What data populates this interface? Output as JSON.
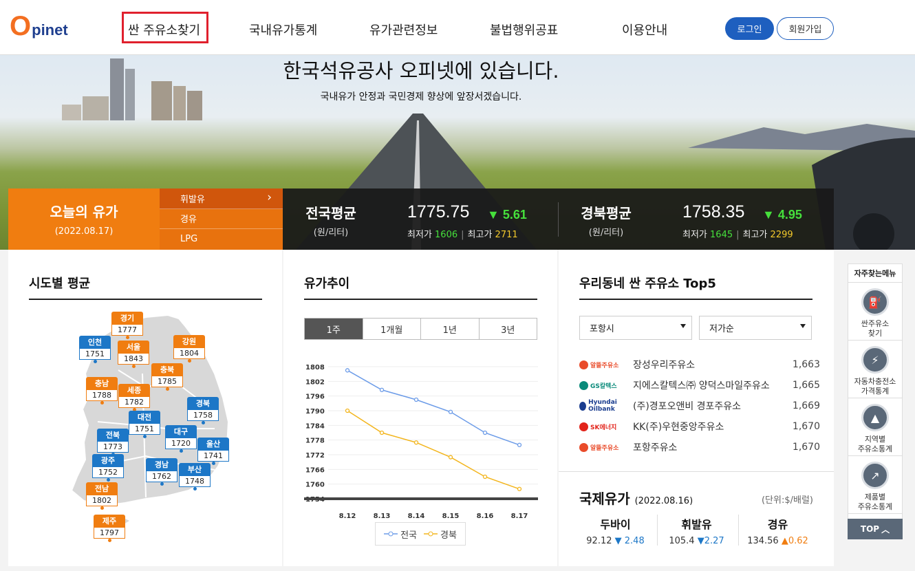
{
  "header": {
    "logo_o": "O",
    "logo_text": "pinet",
    "nav": [
      "싼 주유소찾기",
      "국내유가통계",
      "유가관련정보",
      "불법행위공표",
      "이용안내"
    ],
    "login": "로그인",
    "join": "회원가입"
  },
  "hero": {
    "title": "한국석유공사 오피넷에 있습니다.",
    "subtitle": "국내유가 안정과 국민경제 향상에 앞장서겠습니다."
  },
  "today": {
    "title": "오늘의 유가",
    "date": "(2022.08.17)",
    "fuels": [
      "휘발유",
      "경유",
      "LPG"
    ]
  },
  "national": {
    "label": "전국평균",
    "unit": "(원/리터)",
    "value": "1775.75",
    "delta": "▼ 5.61",
    "min_label": "최저가",
    "min": "1606",
    "max_label": "최고가",
    "max": "2711"
  },
  "regional": {
    "label": "경북평균",
    "unit": "(원/리터)",
    "value": "1758.35",
    "delta": "▼ 4.95",
    "min_label": "최저가",
    "min": "1645",
    "max_label": "최고가",
    "max": "2299"
  },
  "regions": {
    "title": "시도별 평균",
    "pins": [
      {
        "name": "경기",
        "value": "1777",
        "color": "o"
      },
      {
        "name": "인천",
        "value": "1751",
        "color": "b"
      },
      {
        "name": "서울",
        "value": "1843",
        "color": "o"
      },
      {
        "name": "강원",
        "value": "1804",
        "color": "o"
      },
      {
        "name": "충북",
        "value": "1785",
        "color": "o"
      },
      {
        "name": "충남",
        "value": "1788",
        "color": "o"
      },
      {
        "name": "세종",
        "value": "1782",
        "color": "o"
      },
      {
        "name": "경북",
        "value": "1758",
        "color": "b"
      },
      {
        "name": "대전",
        "value": "1751",
        "color": "b"
      },
      {
        "name": "전북",
        "value": "1773",
        "color": "b"
      },
      {
        "name": "대구",
        "value": "1720",
        "color": "b"
      },
      {
        "name": "울산",
        "value": "1741",
        "color": "b"
      },
      {
        "name": "광주",
        "value": "1752",
        "color": "b"
      },
      {
        "name": "경남",
        "value": "1762",
        "color": "b"
      },
      {
        "name": "부산",
        "value": "1748",
        "color": "b"
      },
      {
        "name": "전남",
        "value": "1802",
        "color": "o"
      },
      {
        "name": "제주",
        "value": "1797",
        "color": "o"
      }
    ]
  },
  "trend": {
    "title": "유가추이",
    "tabs": [
      "1주",
      "1개월",
      "1년",
      "3년"
    ]
  },
  "chart_data": {
    "type": "line",
    "x": [
      "8.12",
      "8.13",
      "8.14",
      "8.15",
      "8.16",
      "8.17"
    ],
    "yticks": [
      1808,
      1802,
      1796,
      1790,
      1784,
      1778,
      1772,
      1766,
      1760,
      1754
    ],
    "ylim": [
      1754,
      1808
    ],
    "series": [
      {
        "name": "전국",
        "color": "#6b9be8",
        "values": [
          1806.5,
          1798.5,
          1794.5,
          1789.5,
          1781,
          1776
        ]
      },
      {
        "name": "경북",
        "color": "#f3b51c",
        "values": [
          1790,
          1781,
          1777,
          1771,
          1763,
          1758
        ]
      }
    ]
  },
  "top5": {
    "title": "우리동네 싼 주유소 Top5",
    "city": "포항시",
    "sort": "저가순",
    "items": [
      {
        "brand": "알뜰주유소",
        "brand_color": "#e94b2a",
        "name": "장성우리주유소",
        "price": "1,663"
      },
      {
        "brand": "GS칼텍스",
        "brand_color": "#0a8a7a",
        "name": "지에스칼텍스㈜ 양덕스마일주유소",
        "price": "1,665"
      },
      {
        "brand": "Hyundai Oilbank",
        "brand_color": "#1a3d8f",
        "name": "(주)경포오앤비 경포주유소",
        "price": "1,669"
      },
      {
        "brand": "SK에너지",
        "brand_color": "#e2231a",
        "name": "KK(주)우현중앙주유소",
        "price": "1,670"
      },
      {
        "brand": "알뜰주유소",
        "brand_color": "#e94b2a",
        "name": "포항주유소",
        "price": "1,670"
      }
    ]
  },
  "intl": {
    "title": "국제유가",
    "date": "(2022.08.16)",
    "unit": "(단위:$/배럴)",
    "items": [
      {
        "name": "두바이",
        "value": "92.12",
        "delta": "▼ 2.48",
        "dir": "dn"
      },
      {
        "name": "휘발유",
        "value": "105.4",
        "delta": "▼2.27",
        "dir": "dn"
      },
      {
        "name": "경유",
        "value": "134.56",
        "delta": "▲0.62",
        "dir": "up"
      }
    ]
  },
  "quick": {
    "title": "자주찾는메뉴",
    "items": [
      {
        "l1": "싼주유소",
        "l2": "찾기",
        "icon": "fuel-pin-icon"
      },
      {
        "l1": "자동차충전소",
        "l2": "가격통계",
        "icon": "charger-icon"
      },
      {
        "l1": "지역별",
        "l2": "주유소통계",
        "icon": "map-korea-icon"
      },
      {
        "l1": "제품별",
        "l2": "주유소통계",
        "icon": "chart-line-icon"
      }
    ],
    "top": "TOP"
  }
}
